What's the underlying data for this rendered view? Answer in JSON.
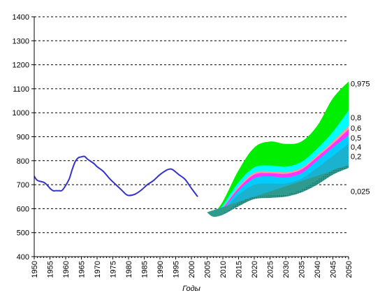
{
  "chart_data": {
    "type": "area",
    "xlabel": "Годы",
    "ylabel": "",
    "xlim": [
      1950,
      2050
    ],
    "ylim": [
      400,
      1400
    ],
    "grid": "horizontal dashed",
    "y_ticks": [
      400,
      500,
      600,
      700,
      800,
      900,
      1000,
      1100,
      1200,
      1300,
      1400
    ],
    "x_ticks": [
      1950,
      1955,
      1960,
      1965,
      1970,
      1975,
      1980,
      1985,
      1990,
      1995,
      2000,
      2005,
      2010,
      2015,
      2020,
      2025,
      2030,
      2035,
      2040,
      2045,
      2050
    ],
    "historical": {
      "color": "#3333cc",
      "x": [
        1950,
        1951,
        1953,
        1954,
        1955,
        1956,
        1957,
        1958,
        1959,
        1961,
        1962,
        1963,
        1964,
        1965,
        1966,
        1967,
        1969,
        1970,
        1972,
        1974,
        1976,
        1978,
        1979,
        1980,
        1982,
        1984,
        1986,
        1988,
        1990,
        1992,
        1993,
        1994,
        1996,
        1998,
        2000,
        2002
      ],
      "y": [
        735,
        718,
        710,
        700,
        685,
        675,
        675,
        675,
        678,
        720,
        760,
        795,
        812,
        816,
        818,
        806,
        788,
        775,
        755,
        725,
        700,
        675,
        662,
        655,
        660,
        677,
        700,
        718,
        742,
        760,
        765,
        763,
        742,
        722,
        685,
        650
      ]
    },
    "forecast": {
      "x": [
        2005,
        2007,
        2010,
        2015,
        2020,
        2025,
        2030,
        2035,
        2040,
        2045,
        2050
      ],
      "bands": [
        {
          "name": "0,025",
          "color": "#2e9b8e",
          "y": [
            585,
            567,
            580,
            625,
            650,
            655,
            660,
            680,
            720,
            760,
            780
          ]
        },
        {
          "name": "0,2",
          "color": "#1ab2ce",
          "y": [
            585,
            572,
            592,
            658,
            700,
            705,
            705,
            725,
            770,
            820,
            870
          ]
        },
        {
          "name": "0,4",
          "color": "#00ccff",
          "y": [
            585,
            574,
            598,
            675,
            727,
            735,
            730,
            748,
            800,
            855,
            905
          ]
        },
        {
          "name": "0,5",
          "color": "#ff33ff",
          "y": [
            585,
            576,
            603,
            685,
            742,
            748,
            745,
            763,
            815,
            870,
            930
          ]
        },
        {
          "name": "0,6",
          "color": "#ff9999",
          "y": [
            585,
            577,
            606,
            692,
            750,
            756,
            752,
            770,
            822,
            880,
            945
          ]
        },
        {
          "name": "0,8",
          "color": "#00ffff",
          "y": [
            585,
            579,
            615,
            710,
            772,
            780,
            775,
            795,
            850,
            920,
            1010
          ]
        },
        {
          "name": "0,975",
          "color": "#00ee00",
          "y": [
            585,
            583,
            630,
            760,
            855,
            880,
            870,
            880,
            945,
            1060,
            1130
          ]
        }
      ]
    }
  }
}
